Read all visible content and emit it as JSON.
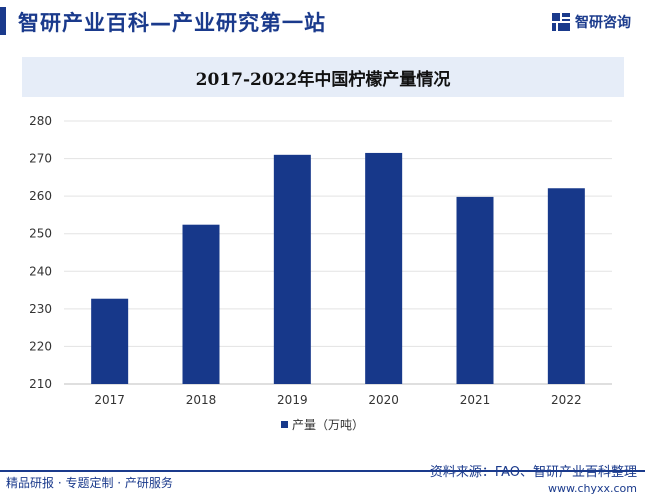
{
  "header": {
    "title": "智研产业百科—产业研究第一站",
    "logo_text": "智研咨询"
  },
  "footer": {
    "left": "精品研报 · 专题定制 · 产研服务",
    "source": "资料来源：FAO、智研产业百科整理",
    "url": "www.chyxx.com"
  },
  "colors": {
    "brand": "#1a3a8c",
    "bar": "#17388a",
    "title_band": "#e6edf8"
  },
  "chart_data": {
    "type": "bar",
    "title": "2017-2022年中国柠檬产量情况",
    "categories": [
      "2017",
      "2018",
      "2019",
      "2020",
      "2021",
      "2022"
    ],
    "series": [
      {
        "name": "产量（万吨）",
        "values": [
          232.7,
          252.4,
          271.0,
          271.5,
          259.8,
          262.1
        ]
      }
    ],
    "yticks": [
      "210",
      "220",
      "230",
      "240",
      "250",
      "260",
      "270",
      "280"
    ],
    "ylim": [
      210,
      280
    ],
    "grid": true,
    "legend": "bottom-center"
  }
}
